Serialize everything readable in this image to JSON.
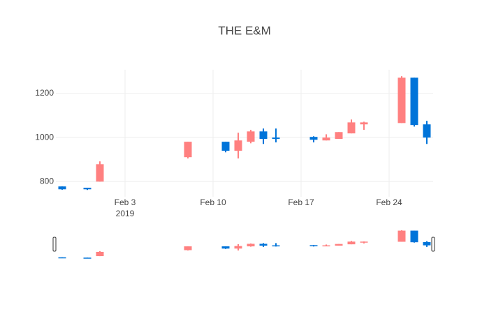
{
  "chart_data": {
    "type": "candlestick",
    "title": "THE E&M",
    "x": [
      "2019-01-29",
      "2019-01-31",
      "2019-02-01",
      "2019-02-08",
      "2019-02-11",
      "2019-02-12",
      "2019-02-13",
      "2019-02-14",
      "2019-02-15",
      "2019-02-18",
      "2019-02-19",
      "2019-02-20",
      "2019-02-21",
      "2019-02-22",
      "2019-02-25",
      "2019-02-26",
      "2019-02-27"
    ],
    "open": [
      778,
      772,
      800,
      911,
      981,
      940,
      981,
      1028,
      1000,
      1003,
      987,
      994,
      1019,
      1060,
      1066,
      1272,
      1060
    ],
    "high": [
      778,
      772,
      892,
      981,
      981,
      1022,
      1035,
      1041,
      1041,
      1006,
      1015,
      1025,
      1082,
      1072,
      1279,
      1272,
      1076
    ],
    "low": [
      763,
      762,
      800,
      905,
      933,
      905,
      974,
      971,
      978,
      978,
      987,
      994,
      1019,
      1035,
      1066,
      1050,
      971
    ],
    "close": [
      765,
      765,
      879,
      981,
      940,
      987,
      1028,
      994,
      994,
      990,
      1000,
      1025,
      1069,
      1069,
      1272,
      1057,
      1000
    ],
    "increasing_color": "#ff8080",
    "decreasing_color": "#0074d9",
    "xlim": [
      "2019-01-28 12:00",
      "2019-02-27 12:00"
    ],
    "xticks": [
      {
        "value": "2019-02-03",
        "label": "Feb 3"
      },
      {
        "value": "2019-02-10",
        "label": "Feb 10"
      },
      {
        "value": "2019-02-17",
        "label": "Feb 17"
      },
      {
        "value": "2019-02-24",
        "label": "Feb 24"
      }
    ],
    "x_year_label": "2019",
    "ylim": [
      731,
      1308
    ],
    "yticks": [
      800,
      1000,
      1200
    ],
    "grid": true,
    "range_slider": true
  }
}
